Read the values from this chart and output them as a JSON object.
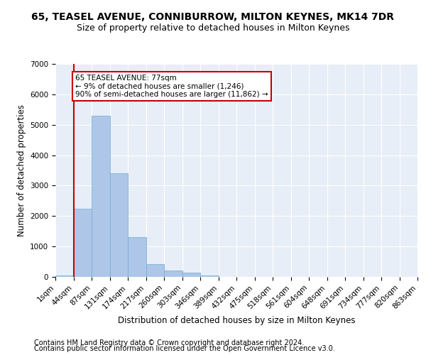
{
  "title1": "65, TEASEL AVENUE, CONNIBURROW, MILTON KEYNES, MK14 7DR",
  "title2": "Size of property relative to detached houses in Milton Keynes",
  "xlabel": "Distribution of detached houses by size in Milton Keynes",
  "ylabel": "Number of detached properties",
  "footnote1": "Contains HM Land Registry data © Crown copyright and database right 2024.",
  "footnote2": "Contains public sector information licensed under the Open Government Licence v3.0.",
  "annotation_title": "65 TEASEL AVENUE: 77sqm",
  "annotation_line1": "← 9% of detached houses are smaller (1,246)",
  "annotation_line2": "90% of semi-detached houses are larger (11,862) →",
  "bar_values": [
    50,
    2250,
    5300,
    3400,
    1300,
    430,
    200,
    130,
    50,
    0,
    0,
    0,
    0,
    0,
    0,
    0,
    0,
    0,
    0,
    0
  ],
  "categories": [
    "1sqm",
    "44sqm",
    "87sqm",
    "131sqm",
    "174sqm",
    "217sqm",
    "260sqm",
    "303sqm",
    "346sqm",
    "389sqm",
    "432sqm",
    "475sqm",
    "518sqm",
    "561sqm",
    "604sqm",
    "648sqm",
    "691sqm",
    "734sqm",
    "777sqm",
    "820sqm",
    "863sqm"
  ],
  "bar_color": "#aec6e8",
  "bar_edge_color": "#6baed6",
  "vline_color": "#cc0000",
  "annotation_box_color": "#ffffff",
  "annotation_box_edge": "#cc0000",
  "ylim": [
    0,
    7000
  ],
  "yticks": [
    0,
    1000,
    2000,
    3000,
    4000,
    5000,
    6000,
    7000
  ],
  "background_color": "#e8eef7",
  "grid_color": "#ffffff",
  "title1_fontsize": 10,
  "title2_fontsize": 9,
  "xlabel_fontsize": 8.5,
  "ylabel_fontsize": 8.5,
  "tick_fontsize": 7.5,
  "annotation_fontsize": 7.5,
  "footnote_fontsize": 7
}
